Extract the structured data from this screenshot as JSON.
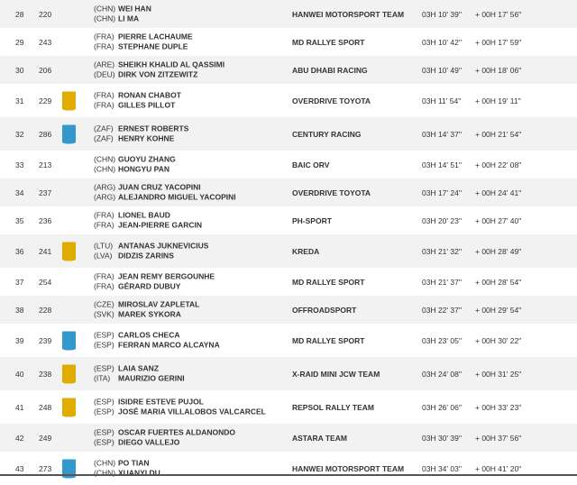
{
  "colors": {
    "badge_yellow": "#e0ac00",
    "badge_blue": "#3399cc",
    "row_alt": "#f2f2f2"
  },
  "rows": [
    {
      "pos": "28",
      "num": "220",
      "badge": "",
      "crew": [
        {
          "nat": "(CHN)",
          "name": "WEI HAN"
        },
        {
          "nat": "(CHN)",
          "name": "LI MA"
        }
      ],
      "team": "HANWEI MOTORSPORT TEAM",
      "time": "03H 10' 39''",
      "diff": "+ 00H 17' 56''"
    },
    {
      "pos": "29",
      "num": "243",
      "badge": "",
      "crew": [
        {
          "nat": "(FRA)",
          "name": "PIERRE LACHAUME"
        },
        {
          "nat": "(FRA)",
          "name": "STEPHANE DUPLE"
        }
      ],
      "team": "MD RALLYE SPORT",
      "time": "03H 10' 42''",
      "diff": "+ 00H 17' 59''"
    },
    {
      "pos": "30",
      "num": "206",
      "badge": "",
      "crew": [
        {
          "nat": "(ARE)",
          "name": "SHEIKH KHALID AL QASSIMI"
        },
        {
          "nat": "(DEU)",
          "name": "DIRK VON ZITZEWITZ"
        }
      ],
      "team": "ABU DHABI RACING",
      "time": "03H 10' 49''",
      "diff": "+ 00H 18' 06''"
    },
    {
      "pos": "31",
      "num": "229",
      "badge": "yellow",
      "crew": [
        {
          "nat": "(FRA)",
          "name": "RONAN CHABOT"
        },
        {
          "nat": "(FRA)",
          "name": "GILLES PILLOT"
        }
      ],
      "team": "OVERDRIVE TOYOTA",
      "time": "03H 11' 54''",
      "diff": "+ 00H 19' 11''"
    },
    {
      "pos": "32",
      "num": "286",
      "badge": "blue",
      "crew": [
        {
          "nat": "(ZAF)",
          "name": "ERNEST ROBERTS"
        },
        {
          "nat": "(ZAF)",
          "name": "HENRY KOHNE"
        }
      ],
      "team": "CENTURY RACING",
      "time": "03H 14' 37''",
      "diff": "+ 00H 21' 54''"
    },
    {
      "pos": "33",
      "num": "213",
      "badge": "",
      "crew": [
        {
          "nat": "(CHN)",
          "name": "GUOYU ZHANG"
        },
        {
          "nat": "(CHN)",
          "name": "HONGYU PAN"
        }
      ],
      "team": "BAIC ORV",
      "time": "03H 14' 51''",
      "diff": "+ 00H 22' 08''"
    },
    {
      "pos": "34",
      "num": "237",
      "badge": "",
      "crew": [
        {
          "nat": "(ARG)",
          "name": "JUAN CRUZ YACOPINI"
        },
        {
          "nat": "(ARG)",
          "name": "ALEJANDRO MIGUEL YACOPINI"
        }
      ],
      "team": "OVERDRIVE TOYOTA",
      "time": "03H 17' 24''",
      "diff": "+ 00H 24' 41''"
    },
    {
      "pos": "35",
      "num": "236",
      "badge": "",
      "crew": [
        {
          "nat": "(FRA)",
          "name": "LIONEL BAUD"
        },
        {
          "nat": "(FRA)",
          "name": "JEAN-PIERRE GARCIN"
        }
      ],
      "team": "PH-SPORT",
      "time": "03H 20' 23''",
      "diff": "+ 00H 27' 40''"
    },
    {
      "pos": "36",
      "num": "241",
      "badge": "yellow",
      "crew": [
        {
          "nat": "(LTU)",
          "name": "ANTANAS JUKNEVICIUS"
        },
        {
          "nat": "(LVA)",
          "name": "DIDZIS ZARINS"
        }
      ],
      "team": "KREDA",
      "time": "03H 21' 32''",
      "diff": "+ 00H 28' 49''"
    },
    {
      "pos": "37",
      "num": "254",
      "badge": "",
      "crew": [
        {
          "nat": "(FRA)",
          "name": "JEAN REMY BERGOUNHE"
        },
        {
          "nat": "(FRA)",
          "name": "GÉRARD DUBUY"
        }
      ],
      "team": "MD RALLYE SPORT",
      "time": "03H 21' 37''",
      "diff": "+ 00H 28' 54''"
    },
    {
      "pos": "38",
      "num": "228",
      "badge": "",
      "crew": [
        {
          "nat": "(CZE)",
          "name": "MIROSLAV ZAPLETAL"
        },
        {
          "nat": "(SVK)",
          "name": "MAREK SYKORA"
        }
      ],
      "team": "OFFROADSPORT",
      "time": "03H 22' 37''",
      "diff": "+ 00H 29' 54''"
    },
    {
      "pos": "39",
      "num": "239",
      "badge": "blue",
      "crew": [
        {
          "nat": "(ESP)",
          "name": "CARLOS CHECA"
        },
        {
          "nat": "(ESP)",
          "name": "FERRAN MARCO ALCAYNA"
        }
      ],
      "team": "MD RALLYE SPORT",
      "time": "03H 23' 05''",
      "diff": "+ 00H 30' 22''"
    },
    {
      "pos": "40",
      "num": "238",
      "badge": "yellow",
      "crew": [
        {
          "nat": "(ESP)",
          "name": "LAIA SANZ"
        },
        {
          "nat": "(ITA)",
          "name": "MAURIZIO GERINI"
        }
      ],
      "team": "X-RAID MINI JCW TEAM",
      "time": "03H 24' 08''",
      "diff": "+ 00H 31' 25''"
    },
    {
      "pos": "41",
      "num": "248",
      "badge": "yellow",
      "crew": [
        {
          "nat": "(ESP)",
          "name": "ISIDRE ESTEVE PUJOL"
        },
        {
          "nat": "(ESP)",
          "name": "JOSÉ MARIA VILLALOBOS VALCARCEL"
        }
      ],
      "team": "REPSOL RALLY TEAM",
      "time": "03H 26' 06''",
      "diff": "+ 00H 33' 23''"
    },
    {
      "pos": "42",
      "num": "249",
      "badge": "",
      "crew": [
        {
          "nat": "(ESP)",
          "name": "OSCAR FUERTES ALDANONDO"
        },
        {
          "nat": "(ESP)",
          "name": "DIEGO VALLEJO"
        }
      ],
      "team": "ASTARA TEAM",
      "time": "03H 30' 39''",
      "diff": "+ 00H 37' 56''"
    },
    {
      "pos": "43",
      "num": "273",
      "badge": "blue",
      "crew": [
        {
          "nat": "(CHN)",
          "name": "PO TIAN"
        },
        {
          "nat": "(CHN)",
          "name": "XUANYI DU"
        }
      ],
      "team": "HANWEI MOTORSPORT TEAM",
      "time": "03H 34' 03''",
      "diff": "+ 00H 41' 20''"
    }
  ]
}
